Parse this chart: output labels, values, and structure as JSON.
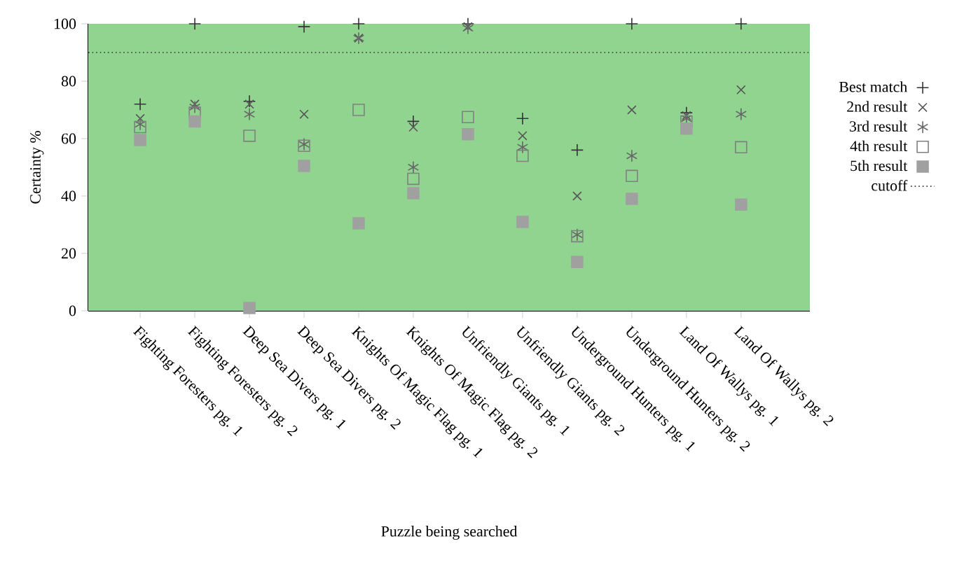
{
  "chart_data": {
    "type": "scatter",
    "xlabel": "Puzzle being searched",
    "ylabel": "Certainty %",
    "categories": [
      "Fighting Foresters pg. 1",
      "Fighting Foresters pg. 2",
      "Deep Sea Divers pg. 1",
      "Deep Sea Divers pg. 2",
      "Knights Of Magic Flag pg. 1",
      "Knights Of Magic Flag pg. 2",
      "Unfriendly Giants pg. 1",
      "Unfriendly Giants pg. 2",
      "Underground Hunters pg. 1",
      "Underground Hunters pg. 2",
      "Land Of Wallys pg. 1",
      "Land Of Wallys pg. 2"
    ],
    "series": [
      {
        "name": "Best match",
        "color": "#333333",
        "marker": "cross",
        "values": [
          72,
          100,
          73,
          99,
          100,
          66,
          100,
          67,
          56,
          100,
          69,
          100
        ]
      },
      {
        "name": "2nd result",
        "color": "#555555",
        "marker": "cross",
        "values": [
          67,
          72,
          72,
          68.5,
          95,
          64,
          99,
          61,
          40,
          70,
          68,
          77
        ]
      },
      {
        "name": "3rd result",
        "color": "#666666",
        "marker": "cross",
        "values": [
          65,
          71,
          68.5,
          58,
          95,
          50,
          98.5,
          57,
          26.5,
          54,
          67,
          68.5
        ]
      },
      {
        "name": "4th result",
        "color": "#808080",
        "marker": "square",
        "values": [
          64,
          69,
          61,
          57.5,
          70,
          46,
          67.5,
          54,
          26,
          47,
          66,
          57
        ]
      },
      {
        "name": "5th result",
        "color": "#a0a0a0",
        "marker": "square",
        "values": [
          59.5,
          66,
          1,
          50.5,
          30.5,
          41,
          61.5,
          31,
          17,
          39,
          63.5,
          37
        ]
      }
    ],
    "ylim": [
      0,
      100
    ],
    "yticks": [
      0,
      20,
      40,
      60,
      80,
      100
    ],
    "ref_lines": [
      {
        "axis": "y",
        "value": 90,
        "label": "cutoff",
        "color": "#333333",
        "line_style": "dotted"
      }
    ],
    "legend": "right",
    "grid": false
  }
}
